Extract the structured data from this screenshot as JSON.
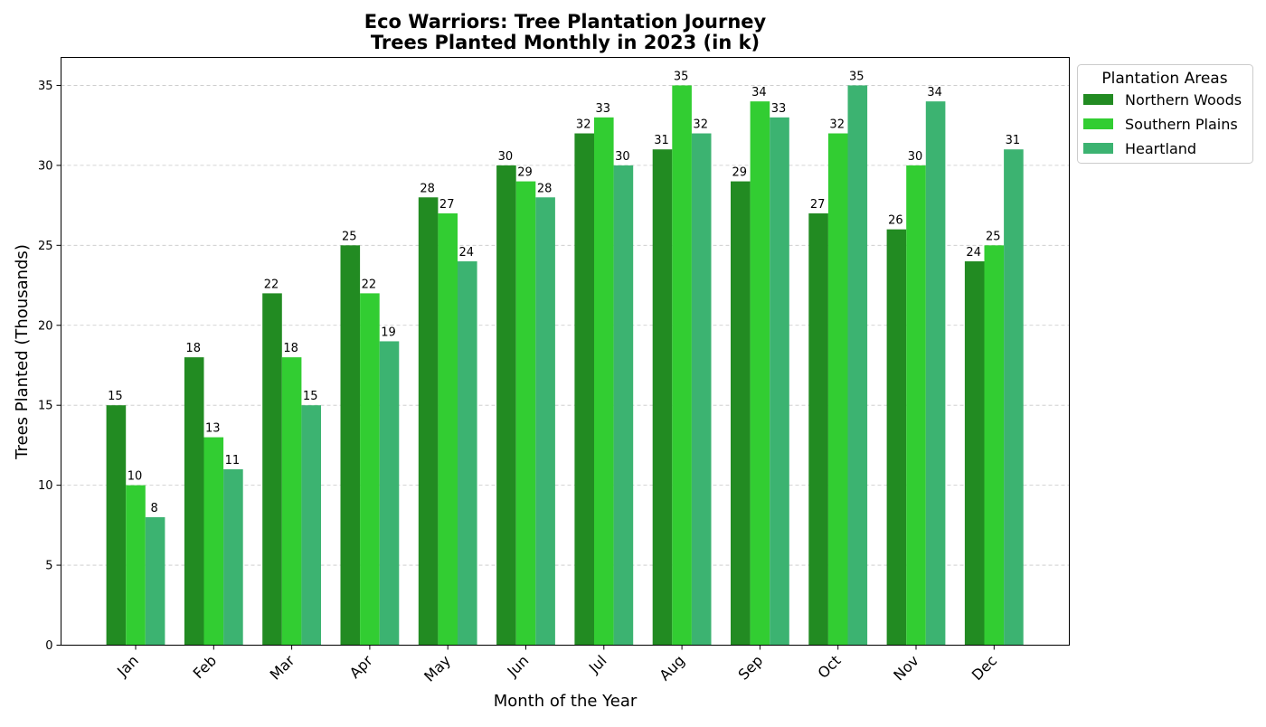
{
  "chart_data": {
    "type": "bar",
    "title": "Eco Warriors: Tree Plantation Journey",
    "subtitle": "Trees Planted Monthly in 2023 (in k)",
    "xlabel": "Month of the Year",
    "ylabel": "Trees Planted (Thousands)",
    "ylim": [
      0,
      36.75
    ],
    "yticks": [
      0,
      5,
      10,
      15,
      20,
      25,
      30,
      35
    ],
    "grid": "y-dashed",
    "legend": {
      "title": "Plantation Areas",
      "placement": "outside-top-right"
    },
    "categories": [
      "Jan",
      "Feb",
      "Mar",
      "Apr",
      "May",
      "Jun",
      "Jul",
      "Aug",
      "Sep",
      "Oct",
      "Nov",
      "Dec"
    ],
    "series": [
      {
        "name": "Northern Woods",
        "color": "#228B22",
        "values": [
          15,
          18,
          22,
          25,
          28,
          30,
          32,
          31,
          29,
          27,
          26,
          24
        ]
      },
      {
        "name": "Southern Plains",
        "color": "#32CD32",
        "values": [
          10,
          13,
          18,
          22,
          27,
          29,
          33,
          35,
          34,
          32,
          30,
          25
        ]
      },
      {
        "name": "Heartland",
        "color": "#3CB371",
        "values": [
          8,
          11,
          15,
          19,
          24,
          28,
          30,
          32,
          33,
          35,
          34,
          31
        ]
      }
    ]
  }
}
